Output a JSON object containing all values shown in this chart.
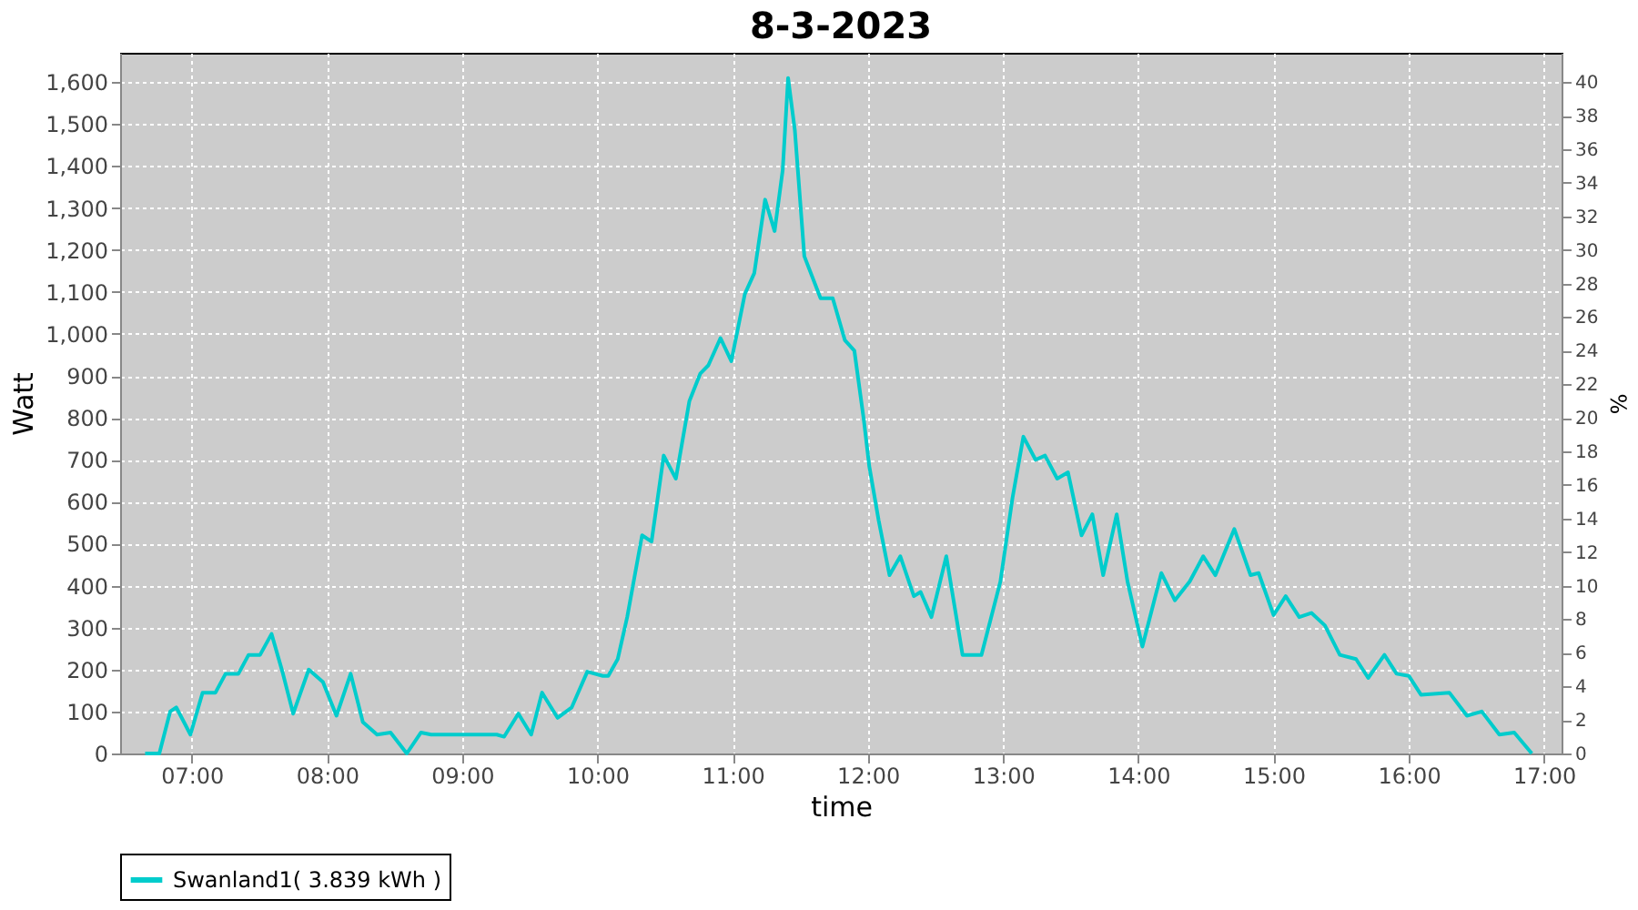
{
  "chart_data": {
    "type": "line",
    "title": "8-3-2023",
    "xlabel": "time",
    "ylabel": "Watt",
    "y2label": "%",
    "xlim": [
      6.47,
      17.13
    ],
    "ylim": [
      0,
      1670
    ],
    "y2lim": [
      0,
      41.75
    ],
    "xticks": [
      {
        "value": 7,
        "label": "07:00"
      },
      {
        "value": 8,
        "label": "08:00"
      },
      {
        "value": 9,
        "label": "09:00"
      },
      {
        "value": 10,
        "label": "10:00"
      },
      {
        "value": 11,
        "label": "11:00"
      },
      {
        "value": 12,
        "label": "12:00"
      },
      {
        "value": 13,
        "label": "13:00"
      },
      {
        "value": 14,
        "label": "14:00"
      },
      {
        "value": 15,
        "label": "15:00"
      },
      {
        "value": 16,
        "label": "16:00"
      },
      {
        "value": 17,
        "label": "17:00"
      }
    ],
    "yticks": [
      0,
      100,
      200,
      300,
      400,
      500,
      600,
      700,
      800,
      900,
      {
        "value": 1000,
        "label": "1,000"
      },
      {
        "value": 1100,
        "label": "1,100"
      },
      {
        "value": 1200,
        "label": "1,200"
      },
      {
        "value": 1300,
        "label": "1,300"
      },
      {
        "value": 1400,
        "label": "1,400"
      },
      {
        "value": 1500,
        "label": "1,500"
      },
      {
        "value": 1600,
        "label": "1,600"
      }
    ],
    "y2ticks": [
      0,
      2,
      4,
      6,
      8,
      10,
      12,
      14,
      16,
      18,
      20,
      22,
      24,
      26,
      28,
      30,
      32,
      34,
      36,
      38,
      40
    ],
    "grid": true,
    "legend": "bottom",
    "marker": "none",
    "line_style": "solid",
    "series": [
      {
        "name": "Swanland1( 3.839 kWh )",
        "color": "#00cccc",
        "x": [
          6.655,
          6.76,
          6.84,
          6.885,
          6.99,
          7.08,
          7.175,
          7.25,
          7.345,
          7.42,
          7.505,
          7.59,
          7.67,
          7.75,
          7.865,
          7.97,
          8.07,
          8.175,
          8.265,
          8.37,
          8.47,
          8.59,
          8.695,
          8.77,
          9.255,
          9.31,
          9.415,
          9.51,
          9.59,
          9.705,
          9.81,
          9.925,
          10.04,
          10.08,
          10.15,
          10.22,
          10.33,
          10.4,
          10.49,
          10.58,
          10.68,
          10.76,
          10.82,
          10.91,
          10.99,
          11.09,
          11.16,
          11.24,
          11.31,
          11.37,
          11.41,
          11.46,
          11.53,
          11.65,
          11.74,
          11.83,
          11.9,
          11.97,
          12.01,
          12.08,
          12.16,
          12.24,
          12.34,
          12.39,
          12.47,
          12.58,
          12.7,
          12.84,
          12.98,
          13.07,
          13.15,
          13.24,
          13.31,
          13.4,
          13.48,
          13.58,
          13.66,
          13.74,
          13.84,
          13.92,
          14.03,
          14.17,
          14.27,
          14.38,
          14.48,
          14.57,
          14.71,
          14.83,
          14.89,
          15.0,
          15.09,
          15.19,
          15.28,
          15.38,
          15.49,
          15.61,
          15.7,
          15.82,
          15.91,
          16.0,
          16.09,
          16.3,
          16.43,
          16.54,
          16.67,
          16.78,
          16.91
        ],
        "values": [
          0,
          0,
          100,
          110,
          45,
          145,
          145,
          190,
          190,
          235,
          235,
          285,
          195,
          95,
          200,
          170,
          90,
          190,
          75,
          45,
          50,
          0,
          50,
          45,
          45,
          40,
          95,
          45,
          145,
          85,
          110,
          195,
          185,
          185,
          225,
          325,
          520,
          505,
          710,
          655,
          840,
          905,
          925,
          990,
          935,
          1095,
          1145,
          1320,
          1245,
          1390,
          1610,
          1485,
          1185,
          1085,
          1085,
          985,
          960,
          795,
          685,
          555,
          425,
          470,
          375,
          385,
          325,
          470,
          235,
          235,
          410,
          610,
          755,
          700,
          710,
          655,
          670,
          520,
          570,
          425,
          570,
          410,
          255,
          430,
          365,
          410,
          470,
          425,
          535,
          425,
          430,
          330,
          375,
          325,
          335,
          305,
          235,
          225,
          180,
          235,
          190,
          185,
          140,
          145,
          90,
          100,
          45,
          50,
          0
        ]
      }
    ]
  }
}
